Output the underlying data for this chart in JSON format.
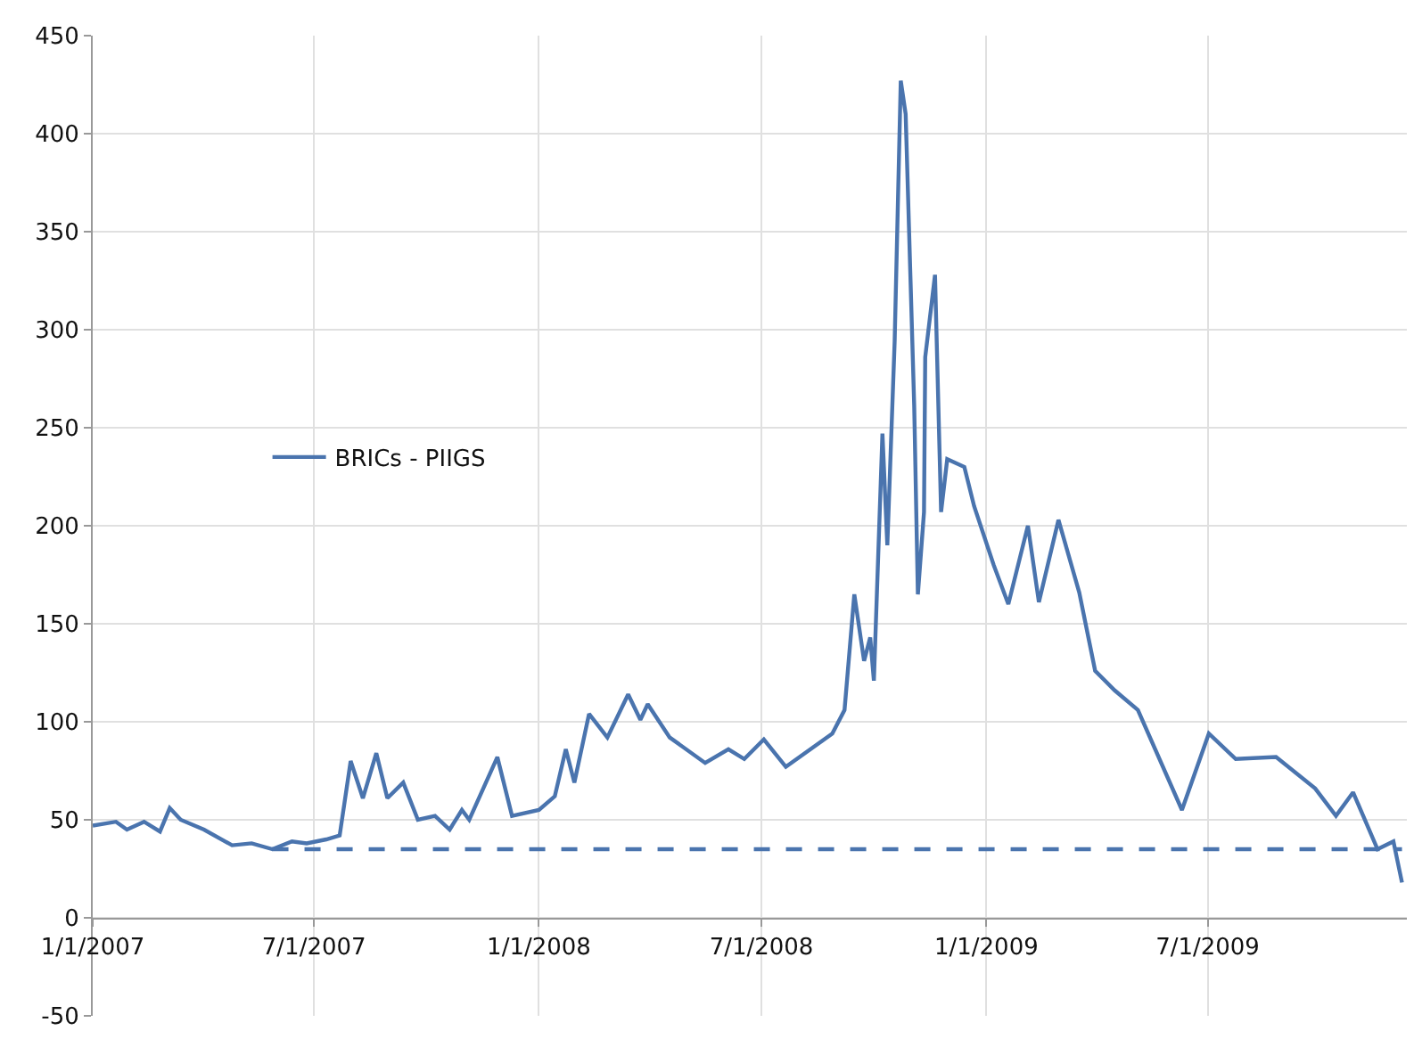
{
  "chart_data": {
    "type": "line",
    "xlim": [
      "2007-01-01",
      "2009-12-11"
    ],
    "ylim": [
      -50,
      450
    ],
    "xticks": [
      {
        "value": "2007-01-01",
        "label": "1/1/2007"
      },
      {
        "value": "2007-07-01",
        "label": "7/1/2007"
      },
      {
        "value": "2008-01-01",
        "label": "1/1/2008"
      },
      {
        "value": "2008-07-01",
        "label": "7/1/2008"
      },
      {
        "value": "2009-01-01",
        "label": "1/1/2009"
      },
      {
        "value": "2009-07-01",
        "label": "7/1/2009"
      }
    ],
    "yticks": [
      -50,
      0,
      50,
      100,
      150,
      200,
      250,
      300,
      350,
      400,
      450
    ],
    "grid": true,
    "legend": "left",
    "series": [
      {
        "name": "BRICs - PIIGS",
        "color": "#4a74ae",
        "line_style": "solid",
        "x": [
          "2007-01-01",
          "2007-01-20",
          "2007-01-29",
          "2007-02-12",
          "2007-02-25",
          "2007-03-05",
          "2007-03-14",
          "2007-04-02",
          "2007-04-25",
          "2007-05-11",
          "2007-05-28",
          "2007-06-13",
          "2007-06-25",
          "2007-07-11",
          "2007-07-22",
          "2007-07-31",
          "2007-08-10",
          "2007-08-21",
          "2007-08-30",
          "2007-09-12",
          "2007-09-24",
          "2007-10-08",
          "2007-10-20",
          "2007-10-30",
          "2007-11-05",
          "2007-11-28",
          "2007-12-10",
          "2008-01-01",
          "2008-01-14",
          "2008-01-23",
          "2008-01-30",
          "2008-02-11",
          "2008-02-26",
          "2008-03-14",
          "2008-03-24",
          "2008-03-30",
          "2008-04-17",
          "2008-05-16",
          "2008-06-04",
          "2008-06-17",
          "2008-07-03",
          "2008-07-21",
          "2008-08-28",
          "2008-09-07",
          "2008-09-15",
          "2008-09-23",
          "2008-09-28",
          "2008-10-01",
          "2008-10-08",
          "2008-10-12",
          "2008-10-18",
          "2008-10-23",
          "2008-10-27",
          "2008-11-03",
          "2008-11-06",
          "2008-11-11",
          "2008-11-12",
          "2008-11-20",
          "2008-11-25",
          "2008-11-30",
          "2008-12-14",
          "2008-12-22",
          "2009-01-07",
          "2009-01-19",
          "2009-02-04",
          "2009-02-13",
          "2009-03-01",
          "2009-03-18",
          "2009-03-31",
          "2009-04-16",
          "2009-05-05",
          "2009-06-10",
          "2009-07-02",
          "2009-07-24",
          "2009-08-26",
          "2009-09-27",
          "2009-10-14",
          "2009-10-28",
          "2009-11-17",
          "2009-11-30",
          "2009-12-07"
        ],
        "values": [
          47,
          49,
          45,
          49,
          44,
          56,
          50,
          45,
          37,
          38,
          35,
          39,
          38,
          40,
          42,
          80,
          61,
          84,
          61,
          69,
          50,
          52,
          45,
          55,
          50,
          82,
          52,
          55,
          62,
          86,
          69,
          104,
          92,
          114,
          101,
          109,
          92,
          79,
          86,
          81,
          91,
          77,
          94,
          106,
          165,
          131,
          143,
          121,
          247,
          190,
          294,
          427,
          410,
          261,
          165,
          207,
          286,
          328,
          207,
          234,
          230,
          210,
          180,
          160,
          200,
          161,
          203,
          166,
          126,
          116,
          106,
          55,
          94,
          81,
          82,
          66,
          52,
          64,
          35,
          39,
          18
        ]
      },
      {
        "color": "#4a74ae",
        "line_style": "dashed",
        "x": [
          "2007-05-28",
          "2009-12-07"
        ],
        "values": [
          35,
          35
        ]
      }
    ]
  }
}
